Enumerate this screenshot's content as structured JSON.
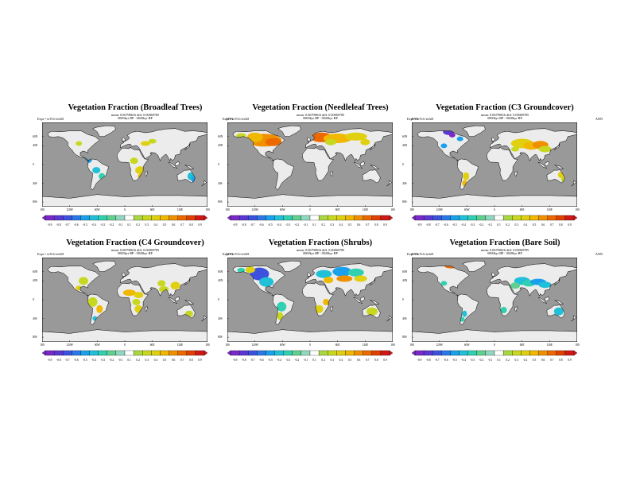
{
  "panels": [
    {
      "title": "Vegetation Fraction (Broadleaf Trees)",
      "subtitle1": "mean: 0.06798616 diff: 0.00069785",
      "subtitle2": "0000kyr BP - 0020kyr BP",
      "expt": "Expt = teVtG-teJsD",
      "season": "ANN",
      "levels": [
        "-0.9",
        "-0.8",
        "-0.7",
        "-0.6",
        "-0.5",
        "-0.4",
        "-0.3",
        "-0.2",
        "-0.1",
        "0.1",
        "0.2",
        "0.3",
        "0.4",
        "0.5",
        "0.6",
        "0.7",
        "0.8",
        "0.9"
      ]
    },
    {
      "title": "Vegetation Fraction (Needleleaf Trees)",
      "subtitle1": "mean: 0.06798616 diff: 0.00069785",
      "subtitle2": "0000kyr BP - 0020kyr BP",
      "expt": "Expt = teVtG-teJsD",
      "season": "ANN",
      "levels": [
        "-0.9",
        "-0.8",
        "-0.7",
        "-0.6",
        "-0.5",
        "-0.4",
        "-0.3",
        "-0.2",
        "-0.1",
        "0.1",
        "0.2",
        "0.3",
        "0.4",
        "0.5",
        "0.6",
        "0.7",
        "0.8",
        "0.9"
      ]
    },
    {
      "title": "Vegetation Fraction (C3 Groundcover)",
      "subtitle1": "mean: 0.06798616 diff: 0.00069785",
      "subtitle2": "0000kyr BP - 0020kyr BP",
      "expt": "Expt = teVtG-teJsD",
      "season": "ANN",
      "levels": [
        "-0.9",
        "-0.8",
        "-0.7",
        "-0.6",
        "-0.5",
        "-0.4",
        "-0.3",
        "-0.2",
        "-0.1",
        "0.1",
        "0.2",
        "0.3",
        "0.4",
        "0.5",
        "0.6",
        "0.7",
        "0.8",
        "0.9"
      ]
    },
    {
      "title": "Vegetation Fraction (C4 Groundcover)",
      "subtitle1": "mean: 0.06798616 diff: 0.00069785",
      "subtitle2": "0000kyr BP - 0020kyr BP",
      "expt": "Expt = teVtG-teJsD",
      "season": "ANN",
      "levels": [
        "-0.9",
        "-0.8",
        "-0.7",
        "-0.6",
        "-0.5",
        "-0.4",
        "-0.3",
        "-0.2",
        "-0.1",
        "0.1",
        "0.2",
        "0.3",
        "0.4",
        "0.5",
        "0.6",
        "0.7",
        "0.8",
        "0.9"
      ]
    },
    {
      "title": "Vegetation Fraction (Shrubs)",
      "subtitle1": "mean: 0.06798616 diff: 0.00069785",
      "subtitle2": "0000kyr BP - 0020kyr BP",
      "expt": "Expt = teVtG-teJsD",
      "season": "ANN",
      "levels": [
        "-0.9",
        "-0.8",
        "-0.7",
        "-0.6",
        "-0.5",
        "-0.4",
        "-0.3",
        "-0.2",
        "-0.1",
        "0.1",
        "0.2",
        "0.3",
        "0.4",
        "0.5",
        "0.6",
        "0.7",
        "0.8",
        "0.9"
      ]
    },
    {
      "title": "Vegetation Fraction (Bare Soil)",
      "subtitle1": "mean: 0.06798616 diff: 0.00069785",
      "subtitle2": "0000kyr BP - 0020kyr BP",
      "expt": "Expt = teVtG-teJsD",
      "season": "ANN",
      "levels": [
        "-0.9",
        "-0.8",
        "-0.7",
        "-0.6",
        "-0.5",
        "-0.4",
        "-0.3",
        "-0.2",
        "-0.1",
        "0.1",
        "0.2",
        "0.3",
        "0.4",
        "0.5",
        "0.6",
        "0.7",
        "0.8",
        "0.9"
      ]
    }
  ],
  "lat_labels": [
    "60N",
    "40N",
    "0",
    "40S",
    "80S"
  ],
  "lon_labels": [
    "180",
    "120W",
    "60W",
    "0",
    "60E",
    "120E",
    "180"
  ],
  "colors": {
    "ocean": "#999999",
    "land": "#ececec",
    "coast": "#000000",
    "palette": [
      "#7a28c8",
      "#5a36d2",
      "#3c52de",
      "#2a78e8",
      "#1aa0ec",
      "#20c0d8",
      "#30d0b0",
      "#60d090",
      "#90d8c0",
      "#ffffff",
      "#a8d840",
      "#c8d820",
      "#e0d010",
      "#f0b800",
      "#f09000",
      "#ec6800",
      "#e04000",
      "#d01818"
    ]
  },
  "icons": {
    "coastline": "world-coastline"
  }
}
